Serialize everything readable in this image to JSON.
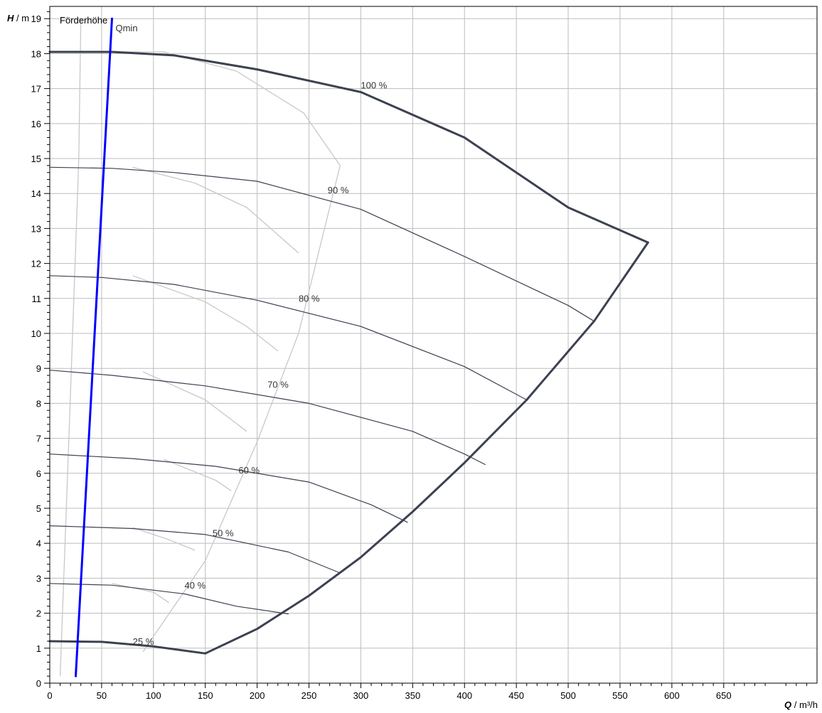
{
  "chart_data": {
    "type": "line",
    "title": "Förderhöhe",
    "xlabel": {
      "var": "Q",
      "unit": "m³/h",
      "sep": " / "
    },
    "ylabel": {
      "var": "H",
      "unit": "m",
      "sep": " / "
    },
    "xlim": [
      0,
      740
    ],
    "ylim": [
      0,
      19.35
    ],
    "x_ticks": [
      0,
      50,
      100,
      150,
      200,
      250,
      300,
      350,
      400,
      450,
      500,
      550,
      600,
      650
    ],
    "y_ticks": [
      0,
      1,
      2,
      3,
      4,
      5,
      6,
      7,
      8,
      9,
      10,
      11,
      12,
      13,
      14,
      15,
      16,
      17,
      18,
      19
    ],
    "grid": true,
    "qmin": {
      "label": "Qmin",
      "color": "#0000ff",
      "points": [
        [
          25,
          0.2
        ],
        [
          60,
          19.0
        ]
      ]
    },
    "curve_color": "#3c4150",
    "aux_color": "#c8c8c8",
    "speed_curves": [
      {
        "label": "100 %",
        "label_at": [
          300,
          17.0
        ],
        "points": [
          [
            0,
            18.05
          ],
          [
            60,
            18.05
          ],
          [
            120,
            17.95
          ],
          [
            200,
            17.55
          ],
          [
            300,
            16.9
          ],
          [
            400,
            15.6
          ],
          [
            500,
            13.6
          ],
          [
            577,
            12.6
          ]
        ]
      },
      {
        "label": "90 %",
        "label_at": [
          268,
          14.0
        ],
        "points": [
          [
            0,
            14.75
          ],
          [
            60,
            14.72
          ],
          [
            120,
            14.6
          ],
          [
            200,
            14.35
          ],
          [
            300,
            13.55
          ],
          [
            400,
            12.2
          ],
          [
            500,
            10.8
          ],
          [
            525,
            10.35
          ]
        ]
      },
      {
        "label": "80 %",
        "label_at": [
          240,
          10.9
        ],
        "points": [
          [
            0,
            11.65
          ],
          [
            50,
            11.6
          ],
          [
            120,
            11.4
          ],
          [
            200,
            10.95
          ],
          [
            300,
            10.2
          ],
          [
            400,
            9.05
          ],
          [
            460,
            8.1
          ]
        ]
      },
      {
        "label": "70 %",
        "label_at": [
          210,
          8.45
        ],
        "points": [
          [
            0,
            8.95
          ],
          [
            60,
            8.8
          ],
          [
            150,
            8.5
          ],
          [
            250,
            8.0
          ],
          [
            350,
            7.2
          ],
          [
            400,
            6.55
          ],
          [
            420,
            6.25
          ]
        ]
      },
      {
        "label": "60 %",
        "label_at": [
          182,
          6.0
        ],
        "points": [
          [
            0,
            6.55
          ],
          [
            80,
            6.42
          ],
          [
            160,
            6.2
          ],
          [
            250,
            5.75
          ],
          [
            310,
            5.1
          ],
          [
            345,
            4.6
          ]
        ]
      },
      {
        "label": "50 %",
        "label_at": [
          157,
          4.2
        ],
        "points": [
          [
            0,
            4.5
          ],
          [
            80,
            4.42
          ],
          [
            150,
            4.25
          ],
          [
            230,
            3.75
          ],
          [
            280,
            3.15
          ]
        ]
      },
      {
        "label": "40 %",
        "label_at": [
          130,
          2.7
        ],
        "points": [
          [
            0,
            2.85
          ],
          [
            60,
            2.8
          ],
          [
            130,
            2.55
          ],
          [
            180,
            2.2
          ],
          [
            230,
            1.98
          ]
        ]
      },
      {
        "label": "25 %",
        "label_at": [
          80,
          1.1
        ],
        "points": [
          [
            0,
            1.2
          ],
          [
            50,
            1.18
          ],
          [
            100,
            1.05
          ],
          [
            150,
            0.85
          ]
        ]
      }
    ],
    "limit_curve": {
      "points": [
        [
          150,
          0.85
        ],
        [
          200,
          1.55
        ],
        [
          250,
          2.5
        ],
        [
          300,
          3.6
        ],
        [
          350,
          4.9
        ],
        [
          400,
          6.3
        ],
        [
          460,
          8.1
        ],
        [
          525,
          10.35
        ],
        [
          577,
          12.6
        ]
      ]
    },
    "aux_curves": [
      [
        [
          10,
          0.2
        ],
        [
          16,
          5
        ],
        [
          22,
          10
        ],
        [
          28,
          15
        ],
        [
          30,
          19
        ]
      ],
      [
        [
          90,
          0.9
        ],
        [
          150,
          3.5
        ],
        [
          200,
          6.9
        ],
        [
          240,
          10
        ],
        [
          265,
          13
        ],
        [
          280,
          14.8
        ],
        [
          245,
          16.3
        ],
        [
          180,
          17.5
        ],
        [
          110,
          18.05
        ],
        [
          70,
          18.05
        ]
      ],
      [
        [
          80,
          14.75
        ],
        [
          140,
          14.3
        ],
        [
          190,
          13.6
        ],
        [
          240,
          12.3
        ]
      ],
      [
        [
          80,
          11.65
        ],
        [
          150,
          10.9
        ],
        [
          190,
          10.2
        ],
        [
          220,
          9.5
        ]
      ],
      [
        [
          90,
          8.9
        ],
        [
          150,
          8.1
        ],
        [
          190,
          7.2
        ]
      ],
      [
        [
          110,
          6.4
        ],
        [
          160,
          5.8
        ],
        [
          175,
          5.5
        ]
      ],
      [
        [
          80,
          4.45
        ],
        [
          115,
          4.1
        ],
        [
          140,
          3.8
        ]
      ],
      [
        [
          60,
          2.85
        ],
        [
          100,
          2.6
        ],
        [
          115,
          2.3
        ]
      ]
    ]
  }
}
